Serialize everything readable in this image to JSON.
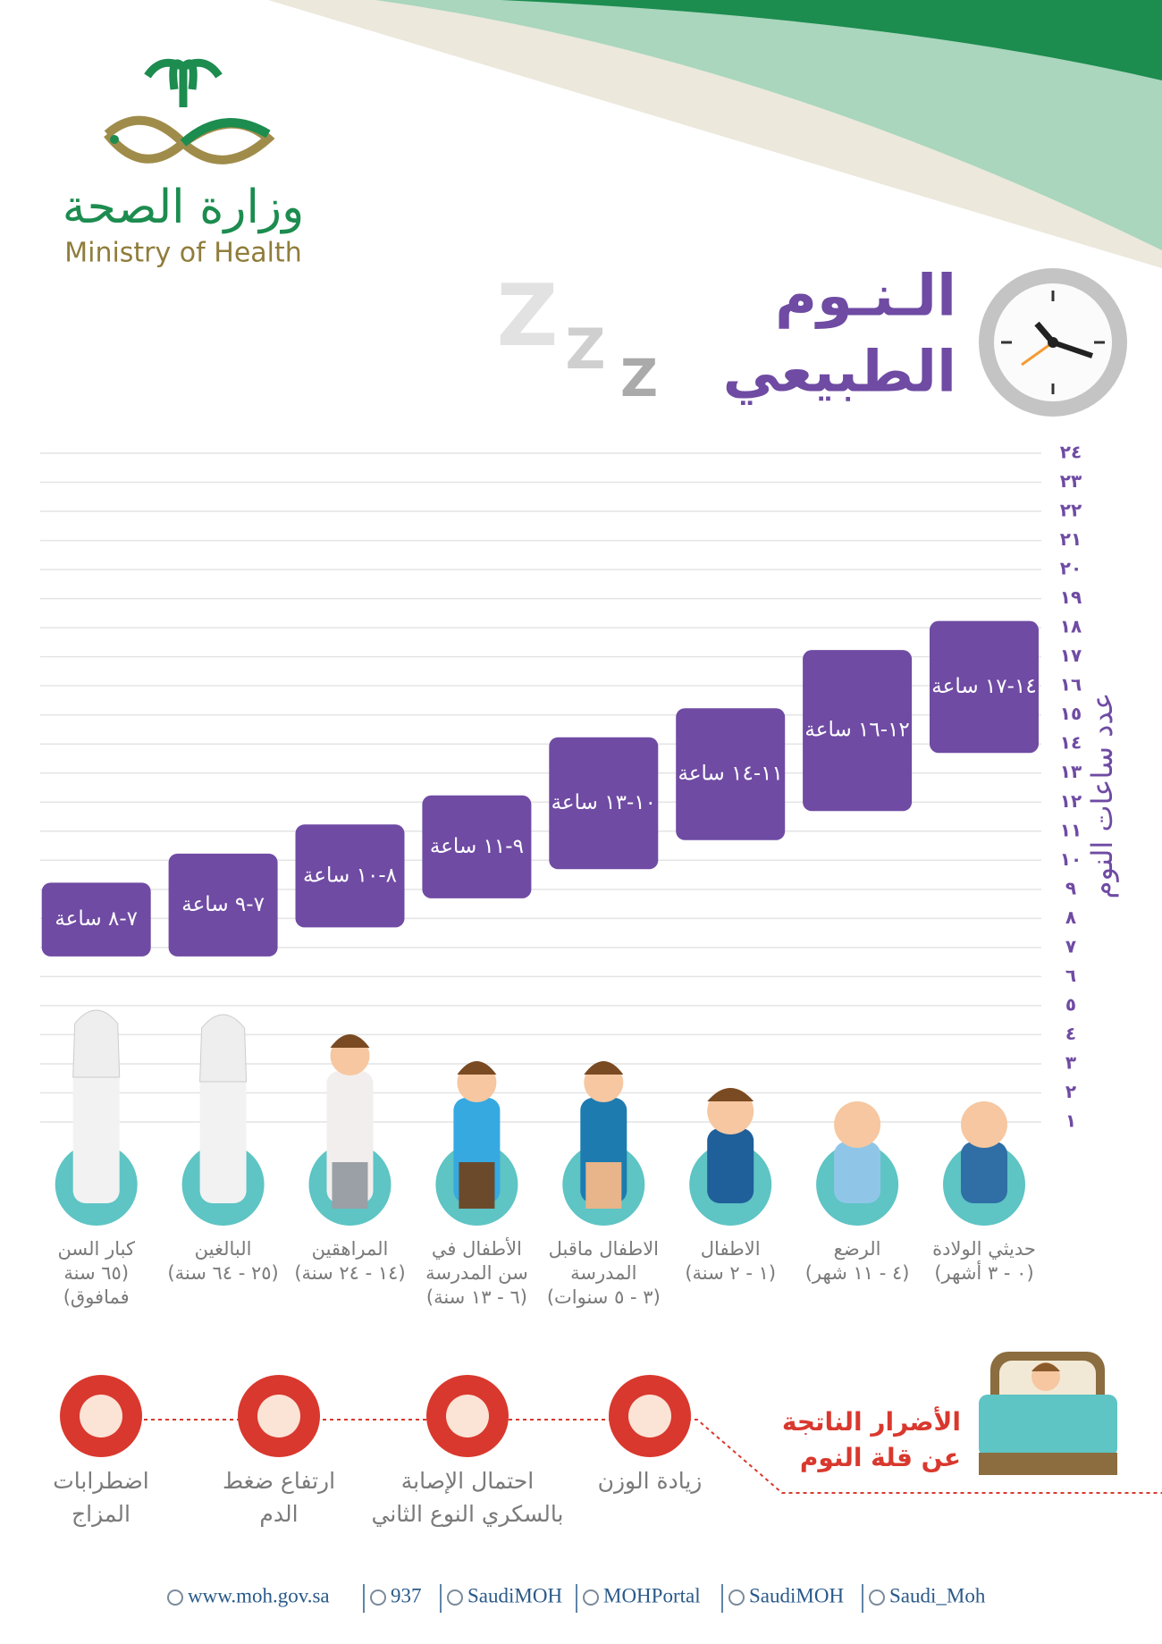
{
  "header": {
    "logo_ar": "وزارة الصحة",
    "logo_en": "Ministry of Health",
    "title": [
      "الـنـوم",
      "الطبيعي"
    ],
    "zzz": [
      "Z",
      "Z",
      "Z"
    ]
  },
  "chart_data": {
    "type": "range-bar",
    "y_label": "عدد ساعات النوم",
    "categories": [
      [
        "حديثي الولادة",
        "(٠ - ٣ أشهر)"
      ],
      [
        "الرضع",
        "(٤ - ١١ شهر)"
      ],
      [
        "الاطفال",
        "(١ - ٢ سنة)"
      ],
      [
        "الاطفال ماقبل",
        "المدرسة",
        "(٣ - ٥ سنوات)"
      ],
      [
        "الأطفال في",
        "سن المدرسة",
        "(٦ - ١٣ سنة)"
      ],
      [
        "المراهقين",
        "(١٤ - ٢٤ سنة)"
      ],
      [
        "البالغين",
        "(٢٥ - ٦٤ سنة)"
      ],
      [
        "كبار السن",
        "(٦٥ سنة",
        "فمافوق)"
      ]
    ],
    "low": [
      14,
      12,
      11,
      10,
      9,
      8,
      7,
      7
    ],
    "high": [
      17,
      16,
      14,
      13,
      11,
      10,
      9,
      8
    ],
    "value_labels": [
      "١٤-١٧ ساعة",
      "١٢-١٦ ساعة",
      "١١-١٤ ساعة",
      "١٠-١٣ ساعة",
      "٩-١١ ساعة",
      "٨-١٠ ساعة",
      "٧-٩ ساعة",
      "٧-٨ ساعة"
    ],
    "color": "#6f4ba3",
    "ylim": [
      1,
      24
    ],
    "yticks": [
      {
        "value": 1,
        "label": "١"
      },
      {
        "value": 2,
        "label": "٢"
      },
      {
        "value": 3,
        "label": "٣"
      },
      {
        "value": 4,
        "label": "٤"
      },
      {
        "value": 5,
        "label": "٥"
      },
      {
        "value": 6,
        "label": "٦"
      },
      {
        "value": 7,
        "label": "٧"
      },
      {
        "value": 8,
        "label": "٨"
      },
      {
        "value": 9,
        "label": "٩"
      },
      {
        "value": 10,
        "label": "١٠"
      },
      {
        "value": 11,
        "label": "١١"
      },
      {
        "value": 12,
        "label": "١٢"
      },
      {
        "value": 13,
        "label": "١٣"
      },
      {
        "value": 14,
        "label": "١٤"
      },
      {
        "value": 15,
        "label": "١٥"
      },
      {
        "value": 16,
        "label": "١٦"
      },
      {
        "value": 17,
        "label": "١٧"
      },
      {
        "value": 18,
        "label": "١٨"
      },
      {
        "value": 19,
        "label": "١٩"
      },
      {
        "value": 20,
        "label": "٢٠"
      },
      {
        "value": 21,
        "label": "٢١"
      },
      {
        "value": 22,
        "label": "٢٢"
      },
      {
        "value": 23,
        "label": "٢٣"
      },
      {
        "value": 24,
        "label": "٢٤"
      }
    ],
    "grid": true
  },
  "harms": {
    "title": [
      "الأضرار الناتجة",
      "عن قلة النوم"
    ],
    "items": [
      [
        "زيادة الوزن"
      ],
      [
        "احتمال الإصابة",
        "بالسكري النوع الثاني"
      ],
      [
        "ارتفاع ضغط",
        "الدم"
      ],
      [
        "اضطرابات",
        "المزاج"
      ]
    ]
  },
  "footer": [
    "www.moh.gov.sa",
    "937",
    "SaudiMOH",
    "MOHPortal",
    "SaudiMOH",
    "Saudi_Moh"
  ]
}
